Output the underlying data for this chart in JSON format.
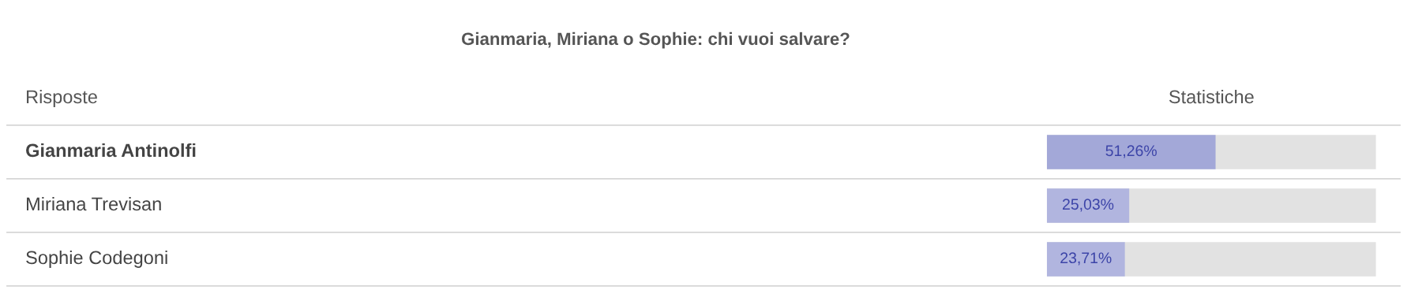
{
  "chart_data": {
    "type": "bar",
    "orientation": "horizontal",
    "title": "Gianmaria, Miriana o Sophie: chi vuoi salvare?",
    "annotations": [
      "Risposte",
      "Statistiche"
    ],
    "categories": [
      "Gianmaria Antinolfi",
      "Miriana Trevisan",
      "Sophie Codegoni"
    ],
    "values": [
      51.26,
      25.03,
      23.71
    ],
    "value_labels": [
      "51,26%",
      "25,03%",
      "23,71%"
    ],
    "colors": [
      "#a3a8d8",
      "#b1b5df",
      "#b1b5df"
    ],
    "xlim": [
      0,
      100
    ],
    "tick_labels": false
  }
}
